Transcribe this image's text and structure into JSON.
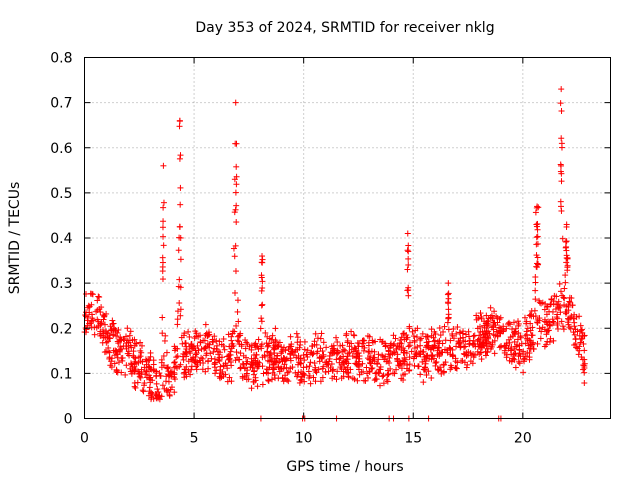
{
  "chart_data": {
    "type": "scatter",
    "title": "Day 353 of 2024, SRMTID for receiver nklg",
    "xlabel": "GPS time / hours",
    "ylabel": "SRMTID / TECUs",
    "xlim": [
      0,
      24
    ],
    "ylim": [
      0,
      0.8
    ],
    "xticks": [
      0,
      5,
      10,
      15,
      20
    ],
    "yticks": [
      0,
      0.1,
      0.2,
      0.3,
      0.4,
      0.5,
      0.6,
      0.7,
      0.8
    ],
    "xtick_labels": [
      "0",
      "5",
      "10",
      "15",
      "20"
    ],
    "ytick_labels": [
      "0",
      "0.1",
      "0.2",
      "0.3",
      "0.4",
      "0.5",
      "0.6",
      "0.7",
      "0.8"
    ],
    "grid": true,
    "marker": "+",
    "color": "#ff0000",
    "baseline_envelope": [
      [
        0.0,
        0.22
      ],
      [
        0.5,
        0.24
      ],
      [
        1.0,
        0.19
      ],
      [
        1.5,
        0.15
      ],
      [
        2.0,
        0.14
      ],
      [
        2.5,
        0.12
      ],
      [
        3.0,
        0.09
      ],
      [
        3.5,
        0.07
      ],
      [
        4.0,
        0.1
      ],
      [
        4.5,
        0.14
      ],
      [
        5.0,
        0.15
      ],
      [
        5.5,
        0.16
      ],
      [
        6.0,
        0.14
      ],
      [
        6.5,
        0.13
      ],
      [
        7.0,
        0.14
      ],
      [
        7.5,
        0.13
      ],
      [
        8.0,
        0.13
      ],
      [
        8.5,
        0.14
      ],
      [
        9.0,
        0.13
      ],
      [
        9.5,
        0.13
      ],
      [
        10.0,
        0.12
      ],
      [
        10.5,
        0.13
      ],
      [
        11.0,
        0.13
      ],
      [
        11.5,
        0.13
      ],
      [
        12.0,
        0.13
      ],
      [
        12.5,
        0.14
      ],
      [
        13.0,
        0.13
      ],
      [
        13.5,
        0.12
      ],
      [
        14.0,
        0.13
      ],
      [
        14.5,
        0.14
      ],
      [
        15.0,
        0.15
      ],
      [
        15.5,
        0.14
      ],
      [
        16.0,
        0.15
      ],
      [
        16.5,
        0.15
      ],
      [
        17.0,
        0.15
      ],
      [
        17.5,
        0.16
      ],
      [
        18.0,
        0.18
      ],
      [
        18.5,
        0.19
      ],
      [
        19.0,
        0.19
      ],
      [
        19.5,
        0.17
      ],
      [
        20.0,
        0.15
      ],
      [
        20.5,
        0.2
      ],
      [
        21.0,
        0.22
      ],
      [
        21.5,
        0.23
      ],
      [
        22.0,
        0.24
      ],
      [
        22.5,
        0.19
      ],
      [
        22.8,
        0.13
      ]
    ],
    "spikes": [
      {
        "x": 3.6,
        "peak": 0.56,
        "width": 0.12
      },
      {
        "x": 4.35,
        "peak": 0.66,
        "width": 0.15
      },
      {
        "x": 6.9,
        "peak": 0.7,
        "width": 0.15
      },
      {
        "x": 8.1,
        "peak": 0.36,
        "width": 0.08
      },
      {
        "x": 14.75,
        "peak": 0.41,
        "width": 0.1
      },
      {
        "x": 16.6,
        "peak": 0.3,
        "width": 0.06
      },
      {
        "x": 20.65,
        "peak": 0.47,
        "width": 0.2
      },
      {
        "x": 21.75,
        "peak": 0.73,
        "width": 0.12
      },
      {
        "x": 22.0,
        "peak": 0.43,
        "width": 0.15
      }
    ],
    "zero_points_x": [
      8.05,
      9.95,
      10.05,
      11.5,
      13.9,
      14.1,
      14.8,
      15.7,
      18.9,
      19.0
    ],
    "x_start": 0.0,
    "x_end": 22.85,
    "point_count": 1600
  }
}
